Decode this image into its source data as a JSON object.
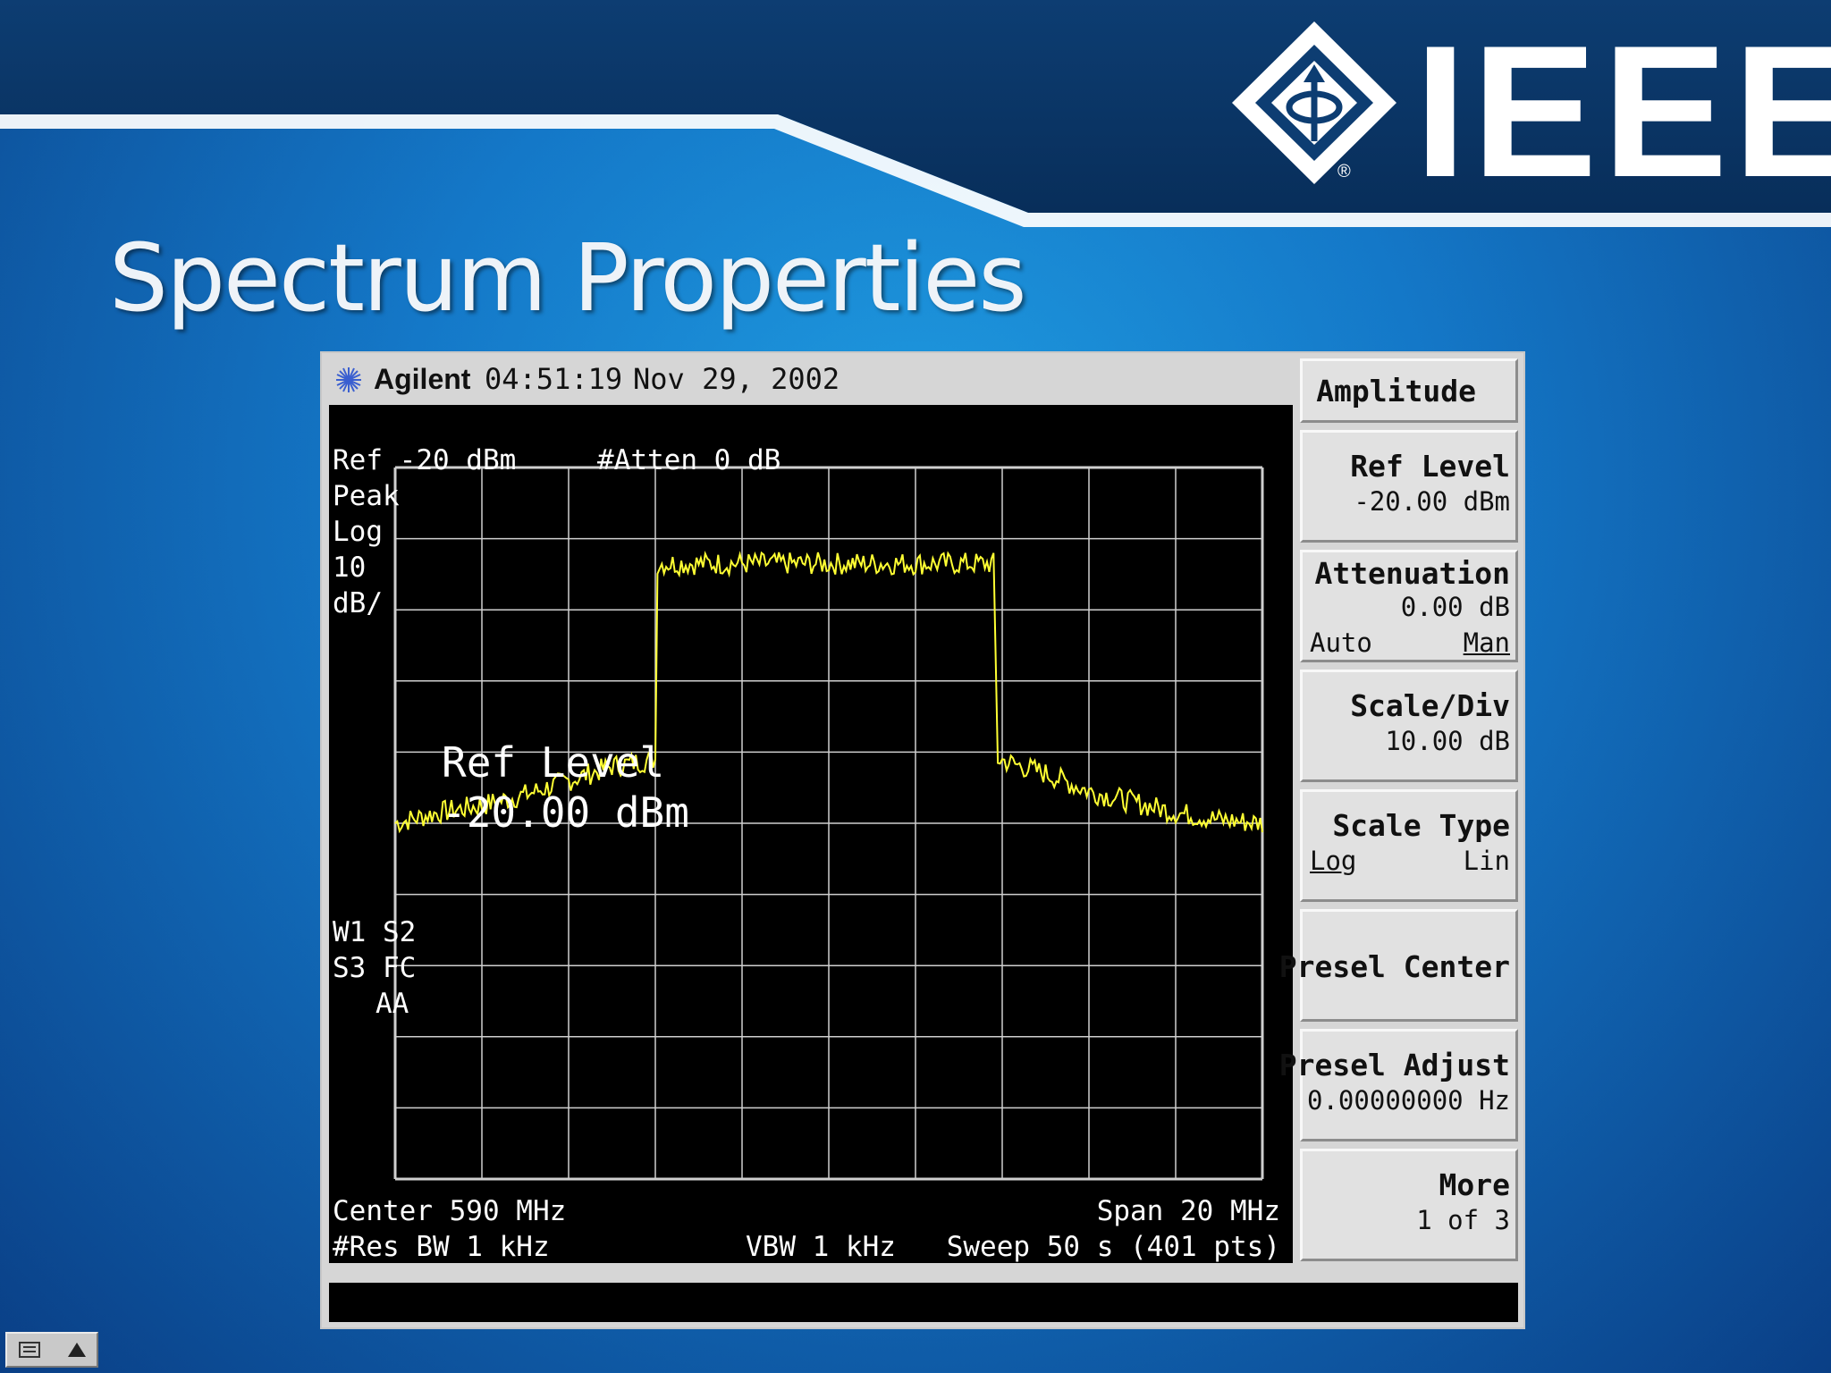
{
  "slide": {
    "title": "Spectrum Properties",
    "logo_text": "IEEE",
    "logo_icon": "ieee-diamond-icon"
  },
  "instrument": {
    "brand": "Agilent",
    "brand_icon": "agilent-spark-icon",
    "time": "04:51:19",
    "date": "Nov 29, 2002"
  },
  "display": {
    "ref": "Ref -20 dBm",
    "atten": "#Atten 0 dB",
    "detector": "Peak",
    "scale_type": "Log",
    "scale_value": "10",
    "scale_unit": "dB/",
    "flags_line1": "W1  S2",
    "flags_line2": "S3  FC",
    "flags_line3": "AA",
    "active_function_label": "Ref Level",
    "active_function_value": "-20.00 dBm",
    "center": "Center 590 MHz",
    "span": "Span 20 MHz",
    "res_bw": "#Res BW 1 kHz",
    "vbw": "VBW 1 kHz",
    "sweep": "Sweep 50 s (401 pts)",
    "trace_color": "#ffff33"
  },
  "softkeys": {
    "title": "Amplitude",
    "ref_level": {
      "label": "Ref Level",
      "value": "-20.00 dBm"
    },
    "attenuation": {
      "label": "Attenuation",
      "value": "0.00 dB",
      "auto": "Auto",
      "man": "Man"
    },
    "scale_div": {
      "label": "Scale/Div",
      "value": "10.00 dB"
    },
    "scale_type": {
      "label": "Scale Type",
      "log": "Log",
      "lin": "Lin"
    },
    "presel_center": {
      "label": "Presel Center"
    },
    "presel_adjust": {
      "label": "Presel Adjust",
      "value": "0.00000000  Hz"
    },
    "more": {
      "label": "More",
      "value": "1 of 3"
    }
  },
  "chart_data": {
    "type": "line",
    "xlabel": "Center 590 MHz",
    "xlim": [
      580,
      600
    ],
    "ylim": [
      -120,
      -20
    ],
    "grid": true,
    "series": [
      {
        "x": [
          580,
          581,
          582,
          583,
          584,
          585,
          586,
          586.02,
          590,
          593.8,
          593.9,
          595,
          596,
          597,
          598,
          599,
          600
        ],
        "values": [
          -70,
          -68.5,
          -67.5,
          -66,
          -64,
          -62,
          -61,
          -33.5,
          -33.5,
          -33.5,
          -61,
          -63,
          -65.5,
          -67,
          -68.5,
          -69.5,
          -70
        ]
      }
    ]
  }
}
